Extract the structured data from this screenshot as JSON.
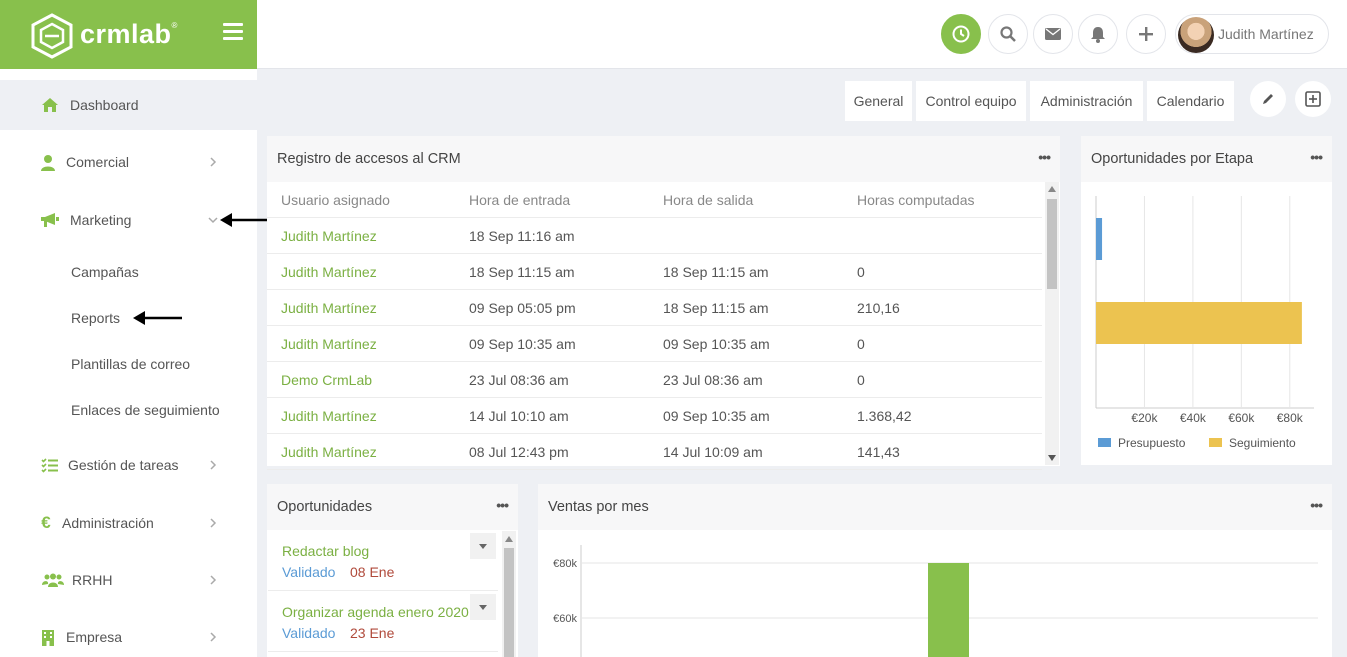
{
  "brand": {
    "name": "crmlab",
    "mark": "®"
  },
  "colors": {
    "accent": "#88c04c",
    "link": "#7bb043",
    "blue": "#5b9bd5",
    "yellow": "#ecc350",
    "date_red": "#b04a3b"
  },
  "sidebar": {
    "items": [
      {
        "label": "Dashboard",
        "icon": "home-icon",
        "active": true
      },
      {
        "label": "Comercial",
        "icon": "user-tie-icon"
      },
      {
        "label": "Marketing",
        "icon": "megaphone-icon",
        "expanded": true
      },
      {
        "label": "Gestión de tareas",
        "icon": "task-list-icon"
      },
      {
        "label": "Administración",
        "icon": "euro-icon"
      },
      {
        "label": "RRHH",
        "icon": "users-icon"
      },
      {
        "label": "Empresa",
        "icon": "building-icon"
      }
    ],
    "marketing_sub": [
      "Campañas",
      "Reports",
      "Plantillas de correo",
      "Enlaces de seguimiento"
    ]
  },
  "topbar": {
    "icons": [
      "clock-icon",
      "search-icon",
      "mail-icon",
      "bell-icon",
      "plus-icon"
    ],
    "user_name": "Judith Martínez"
  },
  "tabs": [
    "General",
    "Control equipo",
    "Administración",
    "Calendario"
  ],
  "access_log": {
    "title": "Registro de accesos al CRM",
    "columns": [
      "Usuario asignado",
      "Hora de entrada",
      "Hora de salida",
      "Horas computadas"
    ],
    "rows": [
      [
        "Judith Martínez",
        "18 Sep 11:16 am",
        "",
        ""
      ],
      [
        "Judith Martínez",
        "18 Sep 11:15 am",
        "18 Sep 11:15 am",
        "0"
      ],
      [
        "Judith Martínez",
        "09 Sep 05:05 pm",
        "18 Sep 11:15 am",
        "210,16"
      ],
      [
        "Judith Martínez",
        "09 Sep 10:35 am",
        "09 Sep 10:35 am",
        "0"
      ],
      [
        "Demo CrmLab",
        "23 Jul 08:36 am",
        "23 Jul 08:36 am",
        "0"
      ],
      [
        "Judith Martínez",
        "14 Jul 10:10 am",
        "09 Sep 10:35 am",
        "1.368,42"
      ],
      [
        "Judith Martínez",
        "08 Jul 12:43 pm",
        "14 Jul 10:09 am",
        "141,43"
      ]
    ]
  },
  "stage_chart": {
    "title": "Oportunidades por Etapa",
    "ticks": [
      "€20k",
      "€40k",
      "€60k",
      "€80k"
    ],
    "legend": [
      "Presupuesto",
      "Seguimiento"
    ]
  },
  "opportunities": {
    "title": "Oportunidades",
    "items": [
      {
        "title": "Redactar blog",
        "status": "Validado",
        "date": "08 Ene"
      },
      {
        "title": "Organizar agenda enero 2020",
        "status": "Validado",
        "date": "23 Ene"
      }
    ]
  },
  "sales_chart": {
    "title": "Ventas por mes",
    "ticks": [
      "€80k",
      "€60k"
    ]
  },
  "chart_data": [
    {
      "type": "bar",
      "orientation": "horizontal",
      "title": "Oportunidades por Etapa",
      "categories": [
        "Presupuesto",
        "Seguimiento"
      ],
      "series": [
        {
          "name": "Presupuesto",
          "values": [
            2500,
            null
          ]
        },
        {
          "name": "Seguimiento",
          "values": [
            null,
            85000
          ]
        }
      ],
      "xlim": [
        0,
        90000
      ],
      "grid": true,
      "legend": "bottom"
    },
    {
      "type": "bar",
      "title": "Ventas por mes",
      "values": [
        80000
      ],
      "ylim": [
        40000,
        85000
      ],
      "grid": true
    }
  ]
}
